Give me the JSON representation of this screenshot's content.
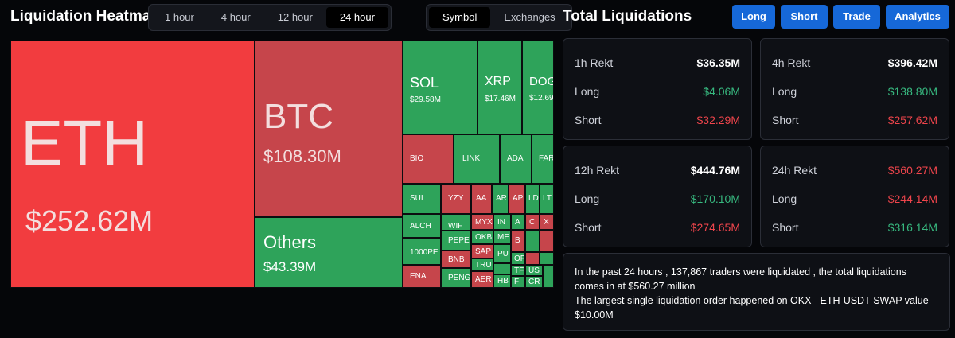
{
  "header": {
    "title": "Liquidation Heatmap",
    "timeframes": [
      "1 hour",
      "4 hour",
      "12 hour",
      "24 hour"
    ],
    "active_timeframe": "24 hour",
    "views": [
      "Symbol",
      "Exchanges"
    ],
    "active_view": "Symbol"
  },
  "right_header": {
    "title": "Total Liquidations",
    "buttons": [
      "Long",
      "Short",
      "Trade",
      "Analytics"
    ],
    "accent": "#1668d8"
  },
  "heatmap": {
    "colors": {
      "red": "#f23c3f",
      "dark_red": "#c6454b",
      "green": "#2ea35a"
    },
    "tiles": [
      {
        "symbol": "ETH",
        "value": "$252.62M"
      },
      {
        "symbol": "BTC",
        "value": "$108.30M"
      },
      {
        "symbol": "Others",
        "value": "$43.39M"
      },
      {
        "symbol": "SOL",
        "value": "$29.58M"
      },
      {
        "symbol": "XRP",
        "value": "$17.46M"
      },
      {
        "symbol": "DOG",
        "value": "$12.69"
      },
      {
        "symbol": "BIO",
        "value": ""
      },
      {
        "symbol": "LINK",
        "value": ""
      },
      {
        "symbol": "ADA",
        "value": ""
      },
      {
        "symbol": "FART",
        "value": ""
      },
      {
        "symbol": "SUI",
        "value": ""
      },
      {
        "symbol": "YZY",
        "value": ""
      },
      {
        "symbol": "AA",
        "value": ""
      },
      {
        "symbol": "AR",
        "value": ""
      },
      {
        "symbol": "AP",
        "value": ""
      },
      {
        "symbol": "LD",
        "value": ""
      },
      {
        "symbol": "LT",
        "value": ""
      },
      {
        "symbol": "ALCH",
        "value": ""
      },
      {
        "symbol": "WIF",
        "value": ""
      },
      {
        "symbol": "MYX",
        "value": ""
      },
      {
        "symbol": "IN",
        "value": ""
      },
      {
        "symbol": "A",
        "value": ""
      },
      {
        "symbol": "C",
        "value": ""
      },
      {
        "symbol": "X",
        "value": ""
      },
      {
        "symbol": "1000PE",
        "value": ""
      },
      {
        "symbol": "PEPE",
        "value": ""
      },
      {
        "symbol": "OKB",
        "value": ""
      },
      {
        "symbol": "ME",
        "value": ""
      },
      {
        "symbol": "B",
        "value": ""
      },
      {
        "symbol": "SAP",
        "value": ""
      },
      {
        "symbol": "BNB",
        "value": ""
      },
      {
        "symbol": "TRU",
        "value": ""
      },
      {
        "symbol": "PU",
        "value": ""
      },
      {
        "symbol": "OF",
        "value": ""
      },
      {
        "symbol": "ENA",
        "value": ""
      },
      {
        "symbol": "PENG",
        "value": ""
      },
      {
        "symbol": "AER",
        "value": ""
      },
      {
        "symbol": "TF",
        "value": ""
      },
      {
        "symbol": "US",
        "value": ""
      },
      {
        "symbol": "HB",
        "value": ""
      },
      {
        "symbol": "FI",
        "value": ""
      },
      {
        "symbol": "CR",
        "value": ""
      }
    ]
  },
  "cards": [
    {
      "title": "1h Rekt",
      "total": "$36.35M",
      "total_color": "#ffffff",
      "long_label": "Long",
      "long": "$4.06M",
      "short_label": "Short",
      "short": "$32.29M"
    },
    {
      "title": "4h Rekt",
      "total": "$396.42M",
      "total_color": "#ffffff",
      "long_label": "Long",
      "long": "$138.80M",
      "short_label": "Short",
      "short": "$257.62M"
    },
    {
      "title": "12h Rekt",
      "total": "$444.76M",
      "total_color": "#ffffff",
      "long_label": "Long",
      "long": "$170.10M",
      "short_label": "Short",
      "short": "$274.65M"
    },
    {
      "title": "24h Rekt",
      "total": "$560.27M",
      "total_color": "#f0454c",
      "long_label": "Long",
      "long": "$244.14M",
      "short_label": "Short",
      "short": "$316.14M"
    }
  ],
  "summary": {
    "line1": "In the past 24 hours , 137,867 traders were liquidated , the total liquidations comes in at $560.27 million",
    "line2": "The largest single liquidation order happened on OKX - ETH-USDT-SWAP value $10.00M"
  }
}
